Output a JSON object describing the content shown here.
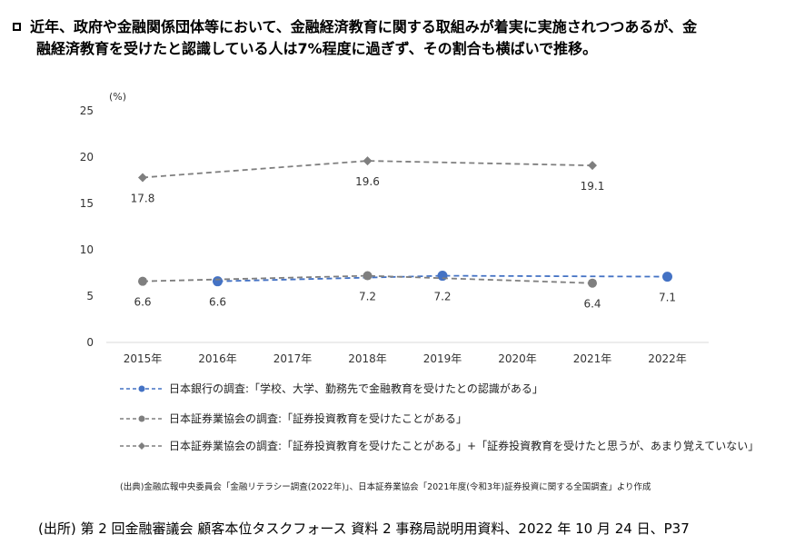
{
  "headline": {
    "line1": "近年、政府や金融関係団体等において、金融経済教育に関する取組みが着実に実施されつつあるが、金",
    "line2": "融経済教育を受けたと認識している人は7%程度に過ぎず、その割合も横ばいで推移。"
  },
  "chart_data": {
    "type": "line",
    "ylabel": "(%)",
    "ylim": [
      0,
      25
    ],
    "yticks": [
      "0",
      "5",
      "10",
      "15",
      "20",
      "25"
    ],
    "categories": [
      "2015年",
      "2016年",
      "2017年",
      "2018年",
      "2019年",
      "2020年",
      "2021年",
      "2022年"
    ],
    "series": [
      {
        "name": "日本銀行の調査:「学校、大学、勤務先で金融教育を受けたとの認識がある」",
        "color": "#4472c4",
        "marker": "circle",
        "points": [
          {
            "x": "2016年",
            "y": 6.6
          },
          {
            "x": "2019年",
            "y": 7.2
          },
          {
            "x": "2022年",
            "y": 7.1
          }
        ]
      },
      {
        "name": "日本証券業協会の調査:「証券投資教育を受けたことがある」",
        "color": "#7f7f7f",
        "marker": "circle",
        "points": [
          {
            "x": "2015年",
            "y": 6.6
          },
          {
            "x": "2018年",
            "y": 7.2
          },
          {
            "x": "2021年",
            "y": 6.4
          }
        ]
      },
      {
        "name": "日本証券業協会の調査:「証券投資教育を受けたことがある」+「証券投資教育を受けたと思うが、あまり覚えていない」",
        "color": "#7f7f7f",
        "marker": "diamond",
        "points": [
          {
            "x": "2015年",
            "y": 17.8
          },
          {
            "x": "2018年",
            "y": 19.6
          },
          {
            "x": "2021年",
            "y": 19.1
          }
        ]
      }
    ],
    "data_labels": [
      {
        "x": "2015年",
        "text": "17.8",
        "anchor_y": 17.8
      },
      {
        "x": "2018年",
        "text": "19.6",
        "anchor_y": 19.6
      },
      {
        "x": "2021年",
        "text": "19.1",
        "anchor_y": 19.1
      },
      {
        "x": "2015年",
        "text": "6.6",
        "anchor_y": 6.6
      },
      {
        "x": "2016年",
        "text": "6.6",
        "anchor_y": 6.6
      },
      {
        "x": "2018年",
        "text": "7.2",
        "anchor_y": 7.2
      },
      {
        "x": "2019年",
        "text": "7.2",
        "anchor_y": 7.2
      },
      {
        "x": "2021年",
        "text": "6.4",
        "anchor_y": 6.4
      },
      {
        "x": "2022年",
        "text": "7.1",
        "anchor_y": 7.1
      }
    ],
    "grid": false
  },
  "legend": [
    {
      "label": "日本銀行の調査:「学校、大学、勤務先で金融教育を受けたとの認識がある」",
      "color": "#4472c4",
      "marker": "circle"
    },
    {
      "label": "日本証券業協会の調査:「証券投資教育を受けたことがある」",
      "color": "#7f7f7f",
      "marker": "circle"
    },
    {
      "label": "日本証券業協会の調査:「証券投資教育を受けたことがある」+「証券投資教育を受けたと思うが、あまり覚えていない」",
      "color": "#7f7f7f",
      "marker": "diamond"
    }
  ],
  "note": "(出典)金融広報中央委員会「金融リテラシー調査(2022年)」、日本証券業協会「2021年度(令和3年)証券投資に関する全国調査」より作成",
  "source": "(出所) 第 2 回金融審議会 顧客本位タスクフォース 資料 2 事務局説明用資料、2022 年 10 月 24 日、P37"
}
